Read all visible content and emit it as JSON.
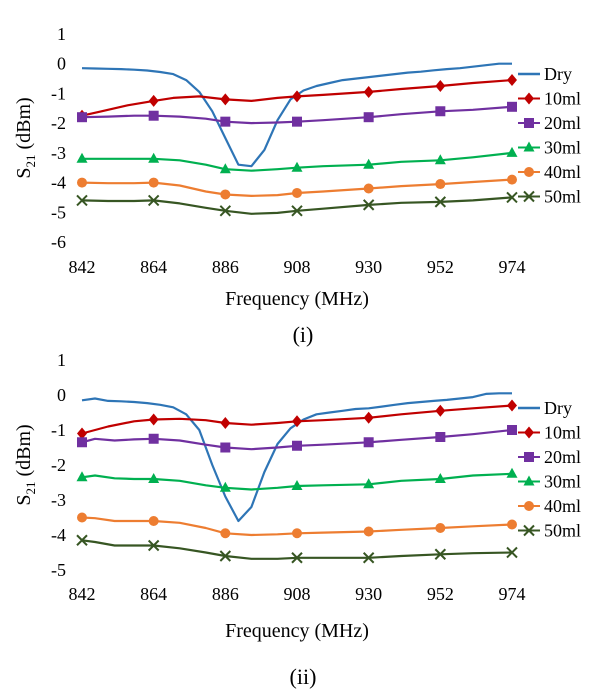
{
  "captions": [
    "(i)",
    "(ii)"
  ],
  "chart_data": [
    {
      "type": "line",
      "xlabel": "Frequency (MHz)",
      "ylabel_main": "S",
      "ylabel_sub": "21",
      "ylabel_unit": " (dBm)",
      "xlim": [
        842,
        974
      ],
      "ylim": [
        -6,
        1
      ],
      "xticks": [
        842,
        864,
        886,
        908,
        930,
        952,
        974
      ],
      "yticks": [
        1,
        0,
        -1,
        -2,
        -3,
        -4,
        -5,
        -6
      ],
      "grid": false,
      "legend": "right",
      "series": [
        {
          "name": "Dry",
          "color": "#2e75b6",
          "marker": "none",
          "x": [
            842,
            846,
            850,
            854,
            858,
            862,
            866,
            870,
            874,
            878,
            882,
            886,
            890,
            894,
            898,
            902,
            906,
            910,
            914,
            918,
            922,
            926,
            930,
            934,
            938,
            942,
            946,
            950,
            954,
            958,
            962,
            966,
            970,
            974
          ],
          "y": [
            -0.15,
            -0.16,
            -0.17,
            -0.18,
            -0.2,
            -0.23,
            -0.28,
            -0.35,
            -0.55,
            -0.95,
            -1.6,
            -2.5,
            -3.4,
            -3.45,
            -2.9,
            -1.9,
            -1.2,
            -0.9,
            -0.75,
            -0.65,
            -0.55,
            -0.5,
            -0.45,
            -0.4,
            -0.35,
            -0.3,
            -0.27,
            -0.22,
            -0.18,
            -0.15,
            -0.1,
            -0.05,
            0,
            0
          ]
        },
        {
          "name": "10ml",
          "color": "#c00000",
          "marker": "diamond",
          "x": [
            842,
            864,
            886,
            908,
            930,
            952,
            974
          ],
          "y": [
            -1.75,
            -1.25,
            -1.2,
            -1.1,
            -0.95,
            -0.75,
            -0.55
          ],
          "x_line": [
            842,
            848,
            856,
            864,
            870,
            878,
            886,
            894,
            902,
            908,
            916,
            930,
            940,
            952,
            962,
            974
          ],
          "y_line": [
            -1.75,
            -1.6,
            -1.4,
            -1.25,
            -1.15,
            -1.1,
            -1.2,
            -1.25,
            -1.15,
            -1.1,
            -1.05,
            -0.95,
            -0.85,
            -0.75,
            -0.65,
            -0.55
          ]
        },
        {
          "name": "20ml",
          "color": "#7030a0",
          "marker": "square",
          "x": [
            842,
            864,
            886,
            908,
            930,
            952,
            974
          ],
          "y": [
            -1.8,
            -1.75,
            -1.95,
            -1.95,
            -1.8,
            -1.6,
            -1.45
          ],
          "x_line": [
            842,
            850,
            858,
            864,
            872,
            880,
            886,
            894,
            902,
            908,
            916,
            930,
            940,
            952,
            962,
            974
          ],
          "y_line": [
            -1.8,
            -1.78,
            -1.75,
            -1.75,
            -1.78,
            -1.85,
            -1.95,
            -2.0,
            -1.98,
            -1.95,
            -1.9,
            -1.8,
            -1.7,
            -1.6,
            -1.55,
            -1.45
          ]
        },
        {
          "name": "30ml",
          "color": "#00b050",
          "marker": "triangle",
          "x": [
            842,
            864,
            886,
            908,
            930,
            952,
            974
          ],
          "y": [
            -3.2,
            -3.2,
            -3.55,
            -3.5,
            -3.4,
            -3.25,
            -3.0
          ],
          "x_line": [
            842,
            850,
            858,
            864,
            872,
            880,
            886,
            894,
            902,
            908,
            916,
            930,
            940,
            952,
            962,
            974
          ],
          "y_line": [
            -3.2,
            -3.2,
            -3.2,
            -3.2,
            -3.25,
            -3.4,
            -3.55,
            -3.6,
            -3.55,
            -3.5,
            -3.45,
            -3.4,
            -3.3,
            -3.25,
            -3.15,
            -3.0
          ]
        },
        {
          "name": "40ml",
          "color": "#ed7d31",
          "marker": "circle",
          "x": [
            842,
            864,
            886,
            908,
            930,
            952,
            974
          ],
          "y": [
            -4.0,
            -4.0,
            -4.4,
            -4.35,
            -4.2,
            -4.05,
            -3.9
          ],
          "x_line": [
            842,
            850,
            858,
            864,
            872,
            880,
            886,
            894,
            902,
            908,
            916,
            930,
            940,
            952,
            962,
            974
          ],
          "y_line": [
            -4.0,
            -4.02,
            -4.02,
            -4.0,
            -4.1,
            -4.3,
            -4.4,
            -4.45,
            -4.42,
            -4.35,
            -4.3,
            -4.2,
            -4.12,
            -4.05,
            -3.98,
            -3.9
          ]
        },
        {
          "name": "50ml",
          "color": "#375623",
          "marker": "x",
          "x": [
            842,
            864,
            886,
            908,
            930,
            952,
            974
          ],
          "y": [
            -4.6,
            -4.6,
            -4.95,
            -4.95,
            -4.75,
            -4.65,
            -4.5
          ],
          "x_line": [
            842,
            850,
            858,
            864,
            872,
            880,
            886,
            894,
            902,
            908,
            916,
            930,
            940,
            952,
            962,
            974
          ],
          "y_line": [
            -4.6,
            -4.62,
            -4.62,
            -4.6,
            -4.7,
            -4.85,
            -4.95,
            -5.05,
            -5.02,
            -4.95,
            -4.88,
            -4.75,
            -4.68,
            -4.65,
            -4.6,
            -4.5
          ]
        }
      ]
    },
    {
      "type": "line",
      "xlabel": "Frequency (MHz)",
      "ylabel_main": "S",
      "ylabel_sub": "21",
      "ylabel_unit": " (dBm)",
      "xlim": [
        842,
        974
      ],
      "ylim": [
        -5,
        1
      ],
      "xticks": [
        842,
        864,
        886,
        908,
        930,
        952,
        974
      ],
      "yticks": [
        1,
        0,
        -1,
        -2,
        -3,
        -4,
        -5
      ],
      "grid": false,
      "legend": "right",
      "series": [
        {
          "name": "Dry",
          "color": "#2e75b6",
          "marker": "none",
          "x": [
            842,
            846,
            850,
            854,
            858,
            862,
            866,
            870,
            874,
            878,
            882,
            886,
            890,
            894,
            898,
            902,
            906,
            910,
            914,
            918,
            922,
            926,
            930,
            934,
            938,
            942,
            946,
            950,
            954,
            958,
            962,
            966,
            970,
            974
          ],
          "y": [
            -0.15,
            -0.1,
            -0.17,
            -0.18,
            -0.2,
            -0.23,
            -0.28,
            -0.35,
            -0.55,
            -1.0,
            -2.0,
            -2.9,
            -3.6,
            -3.2,
            -2.2,
            -1.4,
            -0.95,
            -0.7,
            -0.55,
            -0.5,
            -0.45,
            -0.4,
            -0.38,
            -0.33,
            -0.28,
            -0.23,
            -0.2,
            -0.17,
            -0.14,
            -0.1,
            -0.06,
            0.03,
            0.05,
            0.05
          ]
        },
        {
          "name": "10ml",
          "color": "#c00000",
          "marker": "diamond",
          "x": [
            842,
            864,
            886,
            908,
            930,
            952,
            974
          ],
          "y": [
            -1.1,
            -0.7,
            -0.8,
            -0.75,
            -0.65,
            -0.45,
            -0.3
          ],
          "x_line": [
            842,
            850,
            858,
            864,
            872,
            880,
            886,
            894,
            902,
            908,
            916,
            930,
            940,
            952,
            962,
            974
          ],
          "y_line": [
            -1.1,
            -0.9,
            -0.75,
            -0.7,
            -0.68,
            -0.72,
            -0.8,
            -0.85,
            -0.8,
            -0.75,
            -0.72,
            -0.65,
            -0.55,
            -0.45,
            -0.38,
            -0.3
          ]
        },
        {
          "name": "20ml",
          "color": "#7030a0",
          "marker": "square",
          "x": [
            842,
            864,
            886,
            908,
            930,
            952,
            974
          ],
          "y": [
            -1.35,
            -1.25,
            -1.5,
            -1.45,
            -1.35,
            -1.2,
            -1.0
          ],
          "x_line": [
            842,
            846,
            852,
            858,
            864,
            872,
            880,
            886,
            894,
            902,
            908,
            916,
            930,
            940,
            952,
            962,
            974
          ],
          "y_line": [
            -1.35,
            -1.25,
            -1.3,
            -1.27,
            -1.25,
            -1.3,
            -1.42,
            -1.5,
            -1.55,
            -1.5,
            -1.45,
            -1.42,
            -1.35,
            -1.28,
            -1.2,
            -1.12,
            -1.0
          ]
        },
        {
          "name": "30ml",
          "color": "#00b050",
          "marker": "triangle",
          "x": [
            842,
            864,
            886,
            908,
            930,
            952,
            974
          ],
          "y": [
            -2.35,
            -2.4,
            -2.65,
            -2.6,
            -2.55,
            -2.4,
            -2.25
          ],
          "x_line": [
            842,
            846,
            852,
            858,
            864,
            872,
            880,
            886,
            894,
            902,
            908,
            916,
            930,
            940,
            952,
            962,
            974
          ],
          "y_line": [
            -2.35,
            -2.3,
            -2.38,
            -2.4,
            -2.4,
            -2.45,
            -2.58,
            -2.65,
            -2.7,
            -2.65,
            -2.6,
            -2.58,
            -2.55,
            -2.45,
            -2.4,
            -2.3,
            -2.25
          ]
        },
        {
          "name": "40ml",
          "color": "#ed7d31",
          "marker": "circle",
          "x": [
            842,
            864,
            886,
            908,
            930,
            952,
            974
          ],
          "y": [
            -3.5,
            -3.6,
            -3.95,
            -3.95,
            -3.9,
            -3.8,
            -3.7
          ],
          "x_line": [
            842,
            846,
            852,
            858,
            864,
            872,
            880,
            886,
            894,
            902,
            908,
            916,
            930,
            940,
            952,
            962,
            974
          ],
          "y_line": [
            -3.5,
            -3.52,
            -3.6,
            -3.6,
            -3.6,
            -3.65,
            -3.8,
            -3.95,
            -4.0,
            -3.98,
            -3.95,
            -3.93,
            -3.9,
            -3.85,
            -3.8,
            -3.75,
            -3.7
          ]
        },
        {
          "name": "50ml",
          "color": "#375623",
          "marker": "x",
          "x": [
            842,
            864,
            886,
            908,
            930,
            952,
            974
          ],
          "y": [
            -4.15,
            -4.3,
            -4.6,
            -4.65,
            -4.65,
            -4.55,
            -4.5
          ],
          "x_line": [
            842,
            846,
            852,
            858,
            864,
            872,
            880,
            886,
            894,
            902,
            908,
            916,
            930,
            940,
            952,
            962,
            974
          ],
          "y_line": [
            -4.15,
            -4.2,
            -4.3,
            -4.3,
            -4.3,
            -4.38,
            -4.5,
            -4.6,
            -4.68,
            -4.68,
            -4.65,
            -4.65,
            -4.65,
            -4.6,
            -4.55,
            -4.52,
            -4.5
          ]
        }
      ]
    }
  ]
}
